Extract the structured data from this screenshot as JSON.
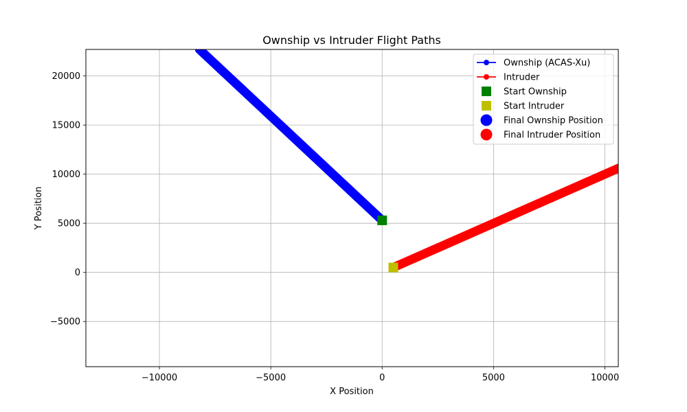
{
  "chart_data": {
    "type": "line",
    "title": "Ownship vs Intruder Flight Paths",
    "xlabel": "X Position",
    "ylabel": "Y Position",
    "xlim": [
      -13300,
      10600
    ],
    "ylim": [
      -9600,
      22700
    ],
    "xticks": [
      -10000,
      -5000,
      0,
      5000,
      10000
    ],
    "xtick_labels": [
      "−10000",
      "−5000",
      "0",
      "5000",
      "10000"
    ],
    "yticks": [
      -5000,
      0,
      5000,
      10000,
      15000,
      20000
    ],
    "ytick_labels": [
      "−5000",
      "0",
      "5000",
      "10000",
      "15000",
      "20000"
    ],
    "grid": true,
    "legend_position": "top-right",
    "series": [
      {
        "name": "Ownship (ACAS-Xu)",
        "color": "#0000ff",
        "marker": "circle",
        "x": [
          0,
          -8200
        ],
        "y": [
          5300,
          22700
        ]
      },
      {
        "name": "Intruder",
        "color": "#ff0000",
        "marker": "circle",
        "x": [
          500,
          10600
        ],
        "y": [
          500,
          10600
        ]
      }
    ],
    "points": [
      {
        "name": "Start Ownship",
        "x": 0,
        "y": 5300,
        "marker": "square",
        "color": "#008000"
      },
      {
        "name": "Start Intruder",
        "x": 500,
        "y": 500,
        "marker": "square",
        "color": "#bfbf00"
      },
      {
        "name": "Final Ownship Position",
        "marker": "circle",
        "color": "#0000ff"
      },
      {
        "name": "Final Intruder Position",
        "marker": "circle",
        "color": "#ff0000"
      }
    ]
  }
}
